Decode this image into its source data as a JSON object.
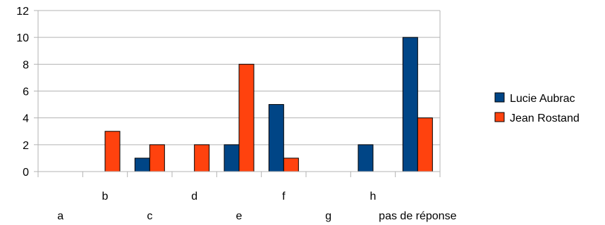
{
  "chart_data": {
    "type": "bar",
    "categories": [
      "a",
      "b",
      "c",
      "d",
      "e",
      "f",
      "g",
      "h",
      "pas de réponse"
    ],
    "series": [
      {
        "name": "Lucie Aubrac",
        "color": "#004586",
        "values": [
          0,
          0,
          1,
          0,
          2,
          5,
          0,
          2,
          10
        ]
      },
      {
        "name": "Jean Rostand",
        "color": "#ff420e",
        "values": [
          0,
          3,
          2,
          2,
          8,
          1,
          0,
          0,
          4
        ]
      }
    ],
    "title": "",
    "xlabel": "",
    "ylabel": "",
    "ylim": [
      0,
      12
    ],
    "yticks": [
      0,
      2,
      4,
      6,
      8,
      10,
      12
    ],
    "grid": true,
    "legend_position": "right"
  }
}
